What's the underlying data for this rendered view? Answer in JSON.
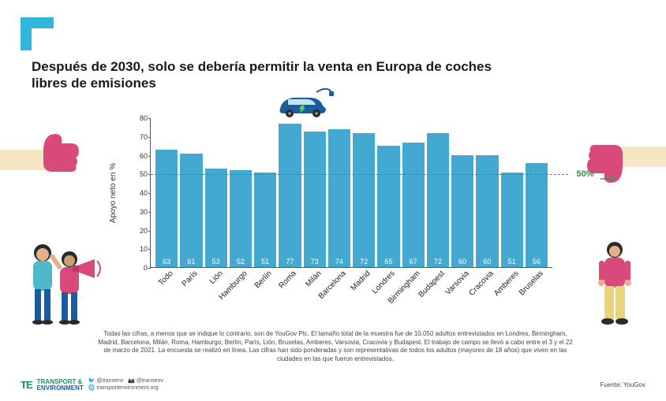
{
  "title": "Después de 2030, solo se debería permitir la venta en Europa de coches libres de emisiones",
  "chart": {
    "type": "bar",
    "y_label": "Apoyo neto en %",
    "y_min": 0,
    "y_max": 80,
    "y_ticks": [
      0,
      10,
      20,
      30,
      40,
      50,
      60,
      70,
      80
    ],
    "bar_color": "#43a9d1",
    "background_color": "#ffffff",
    "axis_color": "#555555",
    "value_text_color": "#ffffff",
    "x_label_color": "#222222",
    "reference_line": {
      "value": 50,
      "label": "50%",
      "color": "#2aa050",
      "label_color": "#2a8f3e"
    },
    "bars": [
      {
        "label": "Todo",
        "value": 63
      },
      {
        "label": "París",
        "value": 61
      },
      {
        "label": "Lión",
        "value": 53
      },
      {
        "label": "Hamburgo",
        "value": 52
      },
      {
        "label": "Berlín",
        "value": 51
      },
      {
        "label": "Roma",
        "value": 77
      },
      {
        "label": "Milán",
        "value": 73
      },
      {
        "label": "Barcelona",
        "value": 74
      },
      {
        "label": "Madrid",
        "value": 72
      },
      {
        "label": "Londres",
        "value": 65
      },
      {
        "label": "Birmingham",
        "value": 67
      },
      {
        "label": "Budapest",
        "value": 72
      },
      {
        "label": "Varsovia",
        "value": 60
      },
      {
        "label": "Cracovia",
        "value": 60
      },
      {
        "label": "Amberes",
        "value": 51
      },
      {
        "label": "Bruselas",
        "value": 56
      }
    ]
  },
  "footnote": "Todas las cifras, a menos que se indique lo contrario, son de YouGov Plc. El tamaño total de la muestra fue de 10.050 adultos entrevistados en Londres, Birmingham, Madrid, Barcelona, Milán, Roma, Hamburgo, Berlín, París, Lión, Bruselas, Amberes, Varsovia, Cracovia y Budapest. El trabajo de campo se llevó a cabo entre el 3 y el 22 de marzo de 2021. La encuesta se realizó en línea. Las cifras han sido ponderadas y son representativas de todos los adultos (mayores de 18 años) que viven en las ciudades en las que fueron entrevistados.",
  "brand": {
    "logo_abbr": "TE",
    "line1": "TRANSPORT &",
    "line2": "ENVIRONMENT",
    "twitter": "@transenv",
    "instagram": "@transenv",
    "website": "transportenvironment.org"
  },
  "source_label": "Fuente: YouGov",
  "colors": {
    "corner_shape": "#33b6dc",
    "thumb_pink": "#d84a7c",
    "sleeve_cream": "#f5e6c4",
    "brand_green": "#1f8f70",
    "brand_blue": "#1b5c9e"
  }
}
